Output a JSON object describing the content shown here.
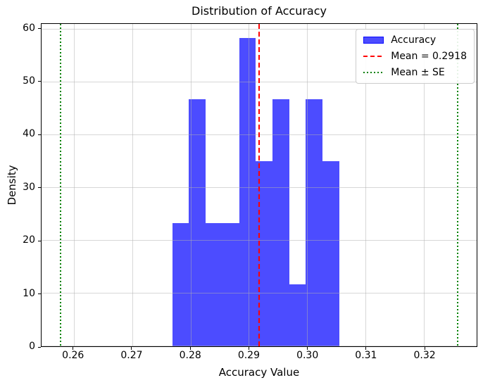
{
  "chart_data": {
    "type": "bar",
    "subtype": "histogram",
    "title": "Distribution of Accuracy",
    "xlabel": "Accuracy Value",
    "ylabel": "Density",
    "xlim": [
      0.2545,
      0.329
    ],
    "ylim": [
      0,
      61
    ],
    "grid": true,
    "x_ticks": [
      {
        "value": 0.26,
        "label": "0.26"
      },
      {
        "value": 0.27,
        "label": "0.27"
      },
      {
        "value": 0.28,
        "label": "0.28"
      },
      {
        "value": 0.29,
        "label": "0.29"
      },
      {
        "value": 0.3,
        "label": "0.30"
      },
      {
        "value": 0.31,
        "label": "0.31"
      },
      {
        "value": 0.32,
        "label": "0.32"
      }
    ],
    "y_ticks": [
      {
        "value": 0,
        "label": "0"
      },
      {
        "value": 10,
        "label": "10"
      },
      {
        "value": 20,
        "label": "20"
      },
      {
        "value": 30,
        "label": "30"
      },
      {
        "value": 40,
        "label": "40"
      },
      {
        "value": 50,
        "label": "50"
      },
      {
        "value": 60,
        "label": "60"
      }
    ],
    "bins": {
      "start": 0.2769,
      "width": 0.002855,
      "densities": [
        23.35,
        46.7,
        23.35,
        23.35,
        58.37,
        35.02,
        46.7,
        11.67,
        46.7,
        35.02
      ],
      "counts": [
        2,
        4,
        2,
        2,
        5,
        3,
        4,
        1,
        4,
        3
      ],
      "n_samples": 30
    },
    "statistics": {
      "mean": 0.2918,
      "se": 0.034,
      "mean_minus_se": 0.2578,
      "mean_plus_se": 0.3258
    },
    "reference_lines": [
      {
        "name": "mean-line",
        "value": 0.2918,
        "style": "dashed",
        "color": "#ff0000"
      },
      {
        "name": "se-lower-line",
        "value": 0.2578,
        "style": "dotted",
        "color": "#008000"
      },
      {
        "name": "se-upper-line",
        "value": 0.3258,
        "style": "dotted",
        "color": "#008000"
      }
    ],
    "legend": {
      "position": "upper right",
      "entries": [
        {
          "label": "Accuracy",
          "swatch": "patch"
        },
        {
          "label": "Mean = 0.2918",
          "swatch": "dashed"
        },
        {
          "label": "Mean ± SE",
          "swatch": "dotted"
        }
      ]
    },
    "colors": {
      "bar": "rgba(0,0,255,0.7)",
      "bar_edge": "rgba(0,0,255,0.85)",
      "mean_line": "#ff0000",
      "se_line": "#008000",
      "grid": "rgba(176,176,176,0.5)",
      "axis": "#000000"
    }
  }
}
